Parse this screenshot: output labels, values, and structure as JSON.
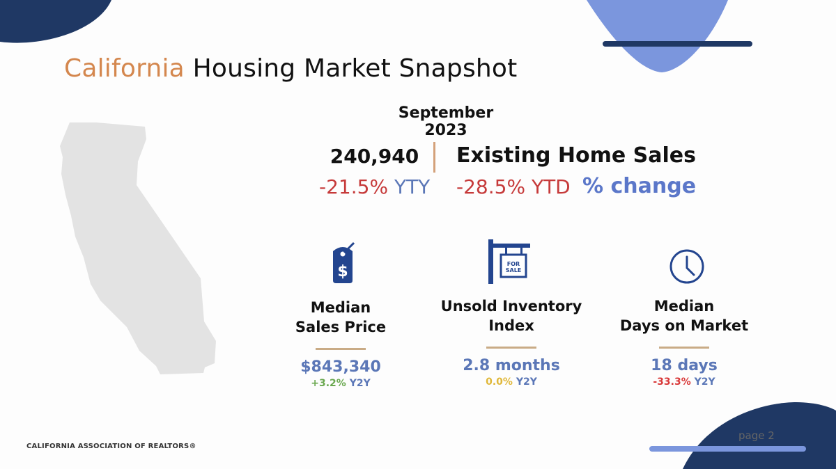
{
  "title": {
    "accent": "California",
    "rest": "Housing Market Snapshot"
  },
  "period": "September 2023",
  "existing_sales": {
    "value": "240,940",
    "label": "Existing Home Sales",
    "yty_value": "-21.5%",
    "yty_unit": "YTY",
    "ytd_value": "-28.5%",
    "ytd_unit": "YTD",
    "change_label": "% change"
  },
  "metrics": [
    {
      "title_line1": "Median",
      "title_line2": "Sales Price",
      "value": "$843,340",
      "change": "+3.2%",
      "change_unit": "Y2Y",
      "icon": "price-tag-icon"
    },
    {
      "title_line1": "Unsold Inventory",
      "title_line2": "Index",
      "value": "2.8 months",
      "change": "0.0%",
      "change_unit": "Y2Y",
      "icon": "for-sale-sign-icon",
      "sign_line1": "FOR",
      "sign_line2": "SALE"
    },
    {
      "title_line1": "Median",
      "title_line2": "Days on Market",
      "value": "18 days",
      "change": "-33.3%",
      "change_unit": "Y2Y",
      "icon": "clock-icon"
    }
  ],
  "footer": {
    "org": "CALIFORNIA ASSOCIATION OF REALTORS®",
    "page": "page 2"
  },
  "colors": {
    "navy": "#1f3864",
    "accent_orange": "#d4874e",
    "periwinkle": "#7b96dd",
    "blue_text": "#5b77b7",
    "red": "#c63a3a",
    "green": "#6aa84f",
    "yellow": "#e0b83a",
    "map_gray": "#e3e3e3"
  }
}
